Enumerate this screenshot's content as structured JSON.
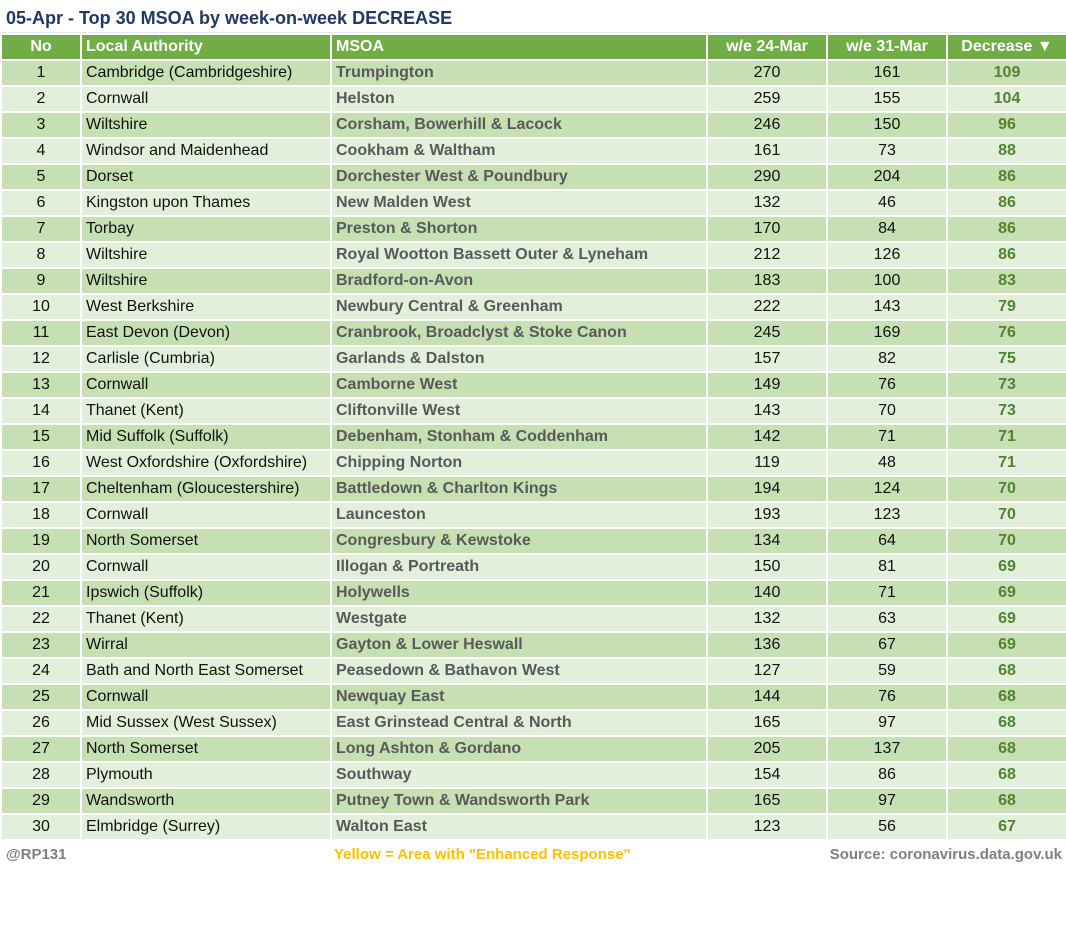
{
  "title": "05-Apr - Top 30 MSOA by week-on-week DECREASE",
  "headers": {
    "no": "No",
    "la": "Local Authority",
    "msoa": "MSOA",
    "w1": "w/e 24-Mar",
    "w2": "w/e 31-Mar",
    "dec": "Decrease ▼"
  },
  "colors": {
    "header": "#70ad47",
    "row_odd": "#c6e0b4",
    "row_even": "#e2efda",
    "decrease_text": "#548235",
    "title": "#1f3864",
    "legend": "#ffc000"
  },
  "rows": [
    [
      "1",
      "Cambridge (Cambridgeshire)",
      "Trumpington",
      "270",
      "161",
      "109"
    ],
    [
      "2",
      "Cornwall",
      "Helston",
      "259",
      "155",
      "104"
    ],
    [
      "3",
      "Wiltshire",
      "Corsham, Bowerhill & Lacock",
      "246",
      "150",
      "96"
    ],
    [
      "4",
      "Windsor and Maidenhead",
      "Cookham & Waltham",
      "161",
      "73",
      "88"
    ],
    [
      "5",
      "Dorset",
      "Dorchester West & Poundbury",
      "290",
      "204",
      "86"
    ],
    [
      "6",
      "Kingston upon Thames",
      "New Malden West",
      "132",
      "46",
      "86"
    ],
    [
      "7",
      "Torbay",
      "Preston & Shorton",
      "170",
      "84",
      "86"
    ],
    [
      "8",
      "Wiltshire",
      "Royal Wootton Bassett Outer & Lyneham",
      "212",
      "126",
      "86"
    ],
    [
      "9",
      "Wiltshire",
      "Bradford-on-Avon",
      "183",
      "100",
      "83"
    ],
    [
      "10",
      "West Berkshire",
      "Newbury Central & Greenham",
      "222",
      "143",
      "79"
    ],
    [
      "11",
      "East Devon (Devon)",
      "Cranbrook, Broadclyst & Stoke Canon",
      "245",
      "169",
      "76"
    ],
    [
      "12",
      "Carlisle (Cumbria)",
      "Garlands & Dalston",
      "157",
      "82",
      "75"
    ],
    [
      "13",
      "Cornwall",
      "Camborne West",
      "149",
      "76",
      "73"
    ],
    [
      "14",
      "Thanet (Kent)",
      "Cliftonville West",
      "143",
      "70",
      "73"
    ],
    [
      "15",
      "Mid Suffolk (Suffolk)",
      "Debenham, Stonham & Coddenham",
      "142",
      "71",
      "71"
    ],
    [
      "16",
      "West Oxfordshire (Oxfordshire)",
      "Chipping Norton",
      "119",
      "48",
      "71"
    ],
    [
      "17",
      "Cheltenham (Gloucestershire)",
      "Battledown & Charlton Kings",
      "194",
      "124",
      "70"
    ],
    [
      "18",
      "Cornwall",
      "Launceston",
      "193",
      "123",
      "70"
    ],
    [
      "19",
      "North Somerset",
      "Congresbury & Kewstoke",
      "134",
      "64",
      "70"
    ],
    [
      "20",
      "Cornwall",
      "Illogan & Portreath",
      "150",
      "81",
      "69"
    ],
    [
      "21",
      "Ipswich (Suffolk)",
      "Holywells",
      "140",
      "71",
      "69"
    ],
    [
      "22",
      "Thanet (Kent)",
      "Westgate",
      "132",
      "63",
      "69"
    ],
    [
      "23",
      "Wirral",
      "Gayton & Lower Heswall",
      "136",
      "67",
      "69"
    ],
    [
      "24",
      "Bath and North East Somerset",
      "Peasedown & Bathavon West",
      "127",
      "59",
      "68"
    ],
    [
      "25",
      "Cornwall",
      "Newquay East",
      "144",
      "76",
      "68"
    ],
    [
      "26",
      "Mid Sussex (West Sussex)",
      "East Grinstead Central & North",
      "165",
      "97",
      "68"
    ],
    [
      "27",
      "North Somerset",
      "Long Ashton & Gordano",
      "205",
      "137",
      "68"
    ],
    [
      "28",
      "Plymouth",
      "Southway",
      "154",
      "86",
      "68"
    ],
    [
      "29",
      "Wandsworth",
      "Putney Town & Wandsworth Park",
      "165",
      "97",
      "68"
    ],
    [
      "30",
      "Elmbridge (Surrey)",
      "Walton East",
      "123",
      "56",
      "67"
    ]
  ],
  "footer": {
    "author": "@RP131",
    "legend": "Yellow = Area with \"Enhanced Response\"",
    "source": "Source: coronavirus.data.gov.uk"
  }
}
